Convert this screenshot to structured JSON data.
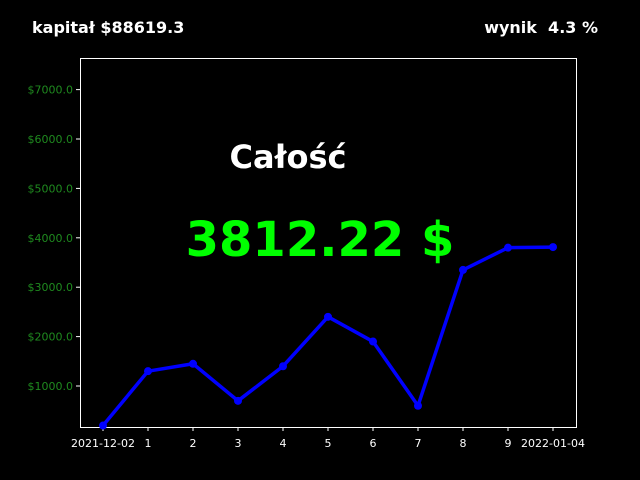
{
  "header": {
    "capital_label": "kapitał $88619.3",
    "result_label": "wynik  4.3 %"
  },
  "chart_data": {
    "type": "line",
    "title": "",
    "xlabel": "",
    "ylabel": "",
    "x": [
      "2021-12-02",
      "1",
      "2",
      "3",
      "4",
      "5",
      "6",
      "7",
      "8",
      "9",
      "2022-01-04"
    ],
    "series": [
      {
        "values": [
          200,
          1300,
          1450,
          700,
          1400,
          2400,
          1900,
          600,
          3350,
          3800,
          3812.22
        ],
        "color": "#0000ff"
      }
    ],
    "ylim": [
      170,
      7640
    ],
    "yticks": [
      1000,
      2000,
      3000,
      4000,
      5000,
      6000,
      7000
    ],
    "ytick_labels": [
      "$1000.0",
      "$2000.0",
      "$3000.0",
      "$4000.0",
      "$5000.0",
      "$6000.0",
      "$7000.0"
    ],
    "annotations": {
      "title": "Całość",
      "value": "3812.22 $"
    },
    "grid": false,
    "background": "#000000",
    "axes_color": "#ffffff",
    "ytick_color": "#1f8a1f",
    "xtick_color": "#ffffff",
    "annotation_title_color": "#ffffff",
    "annotation_value_color": "#00ff00"
  }
}
